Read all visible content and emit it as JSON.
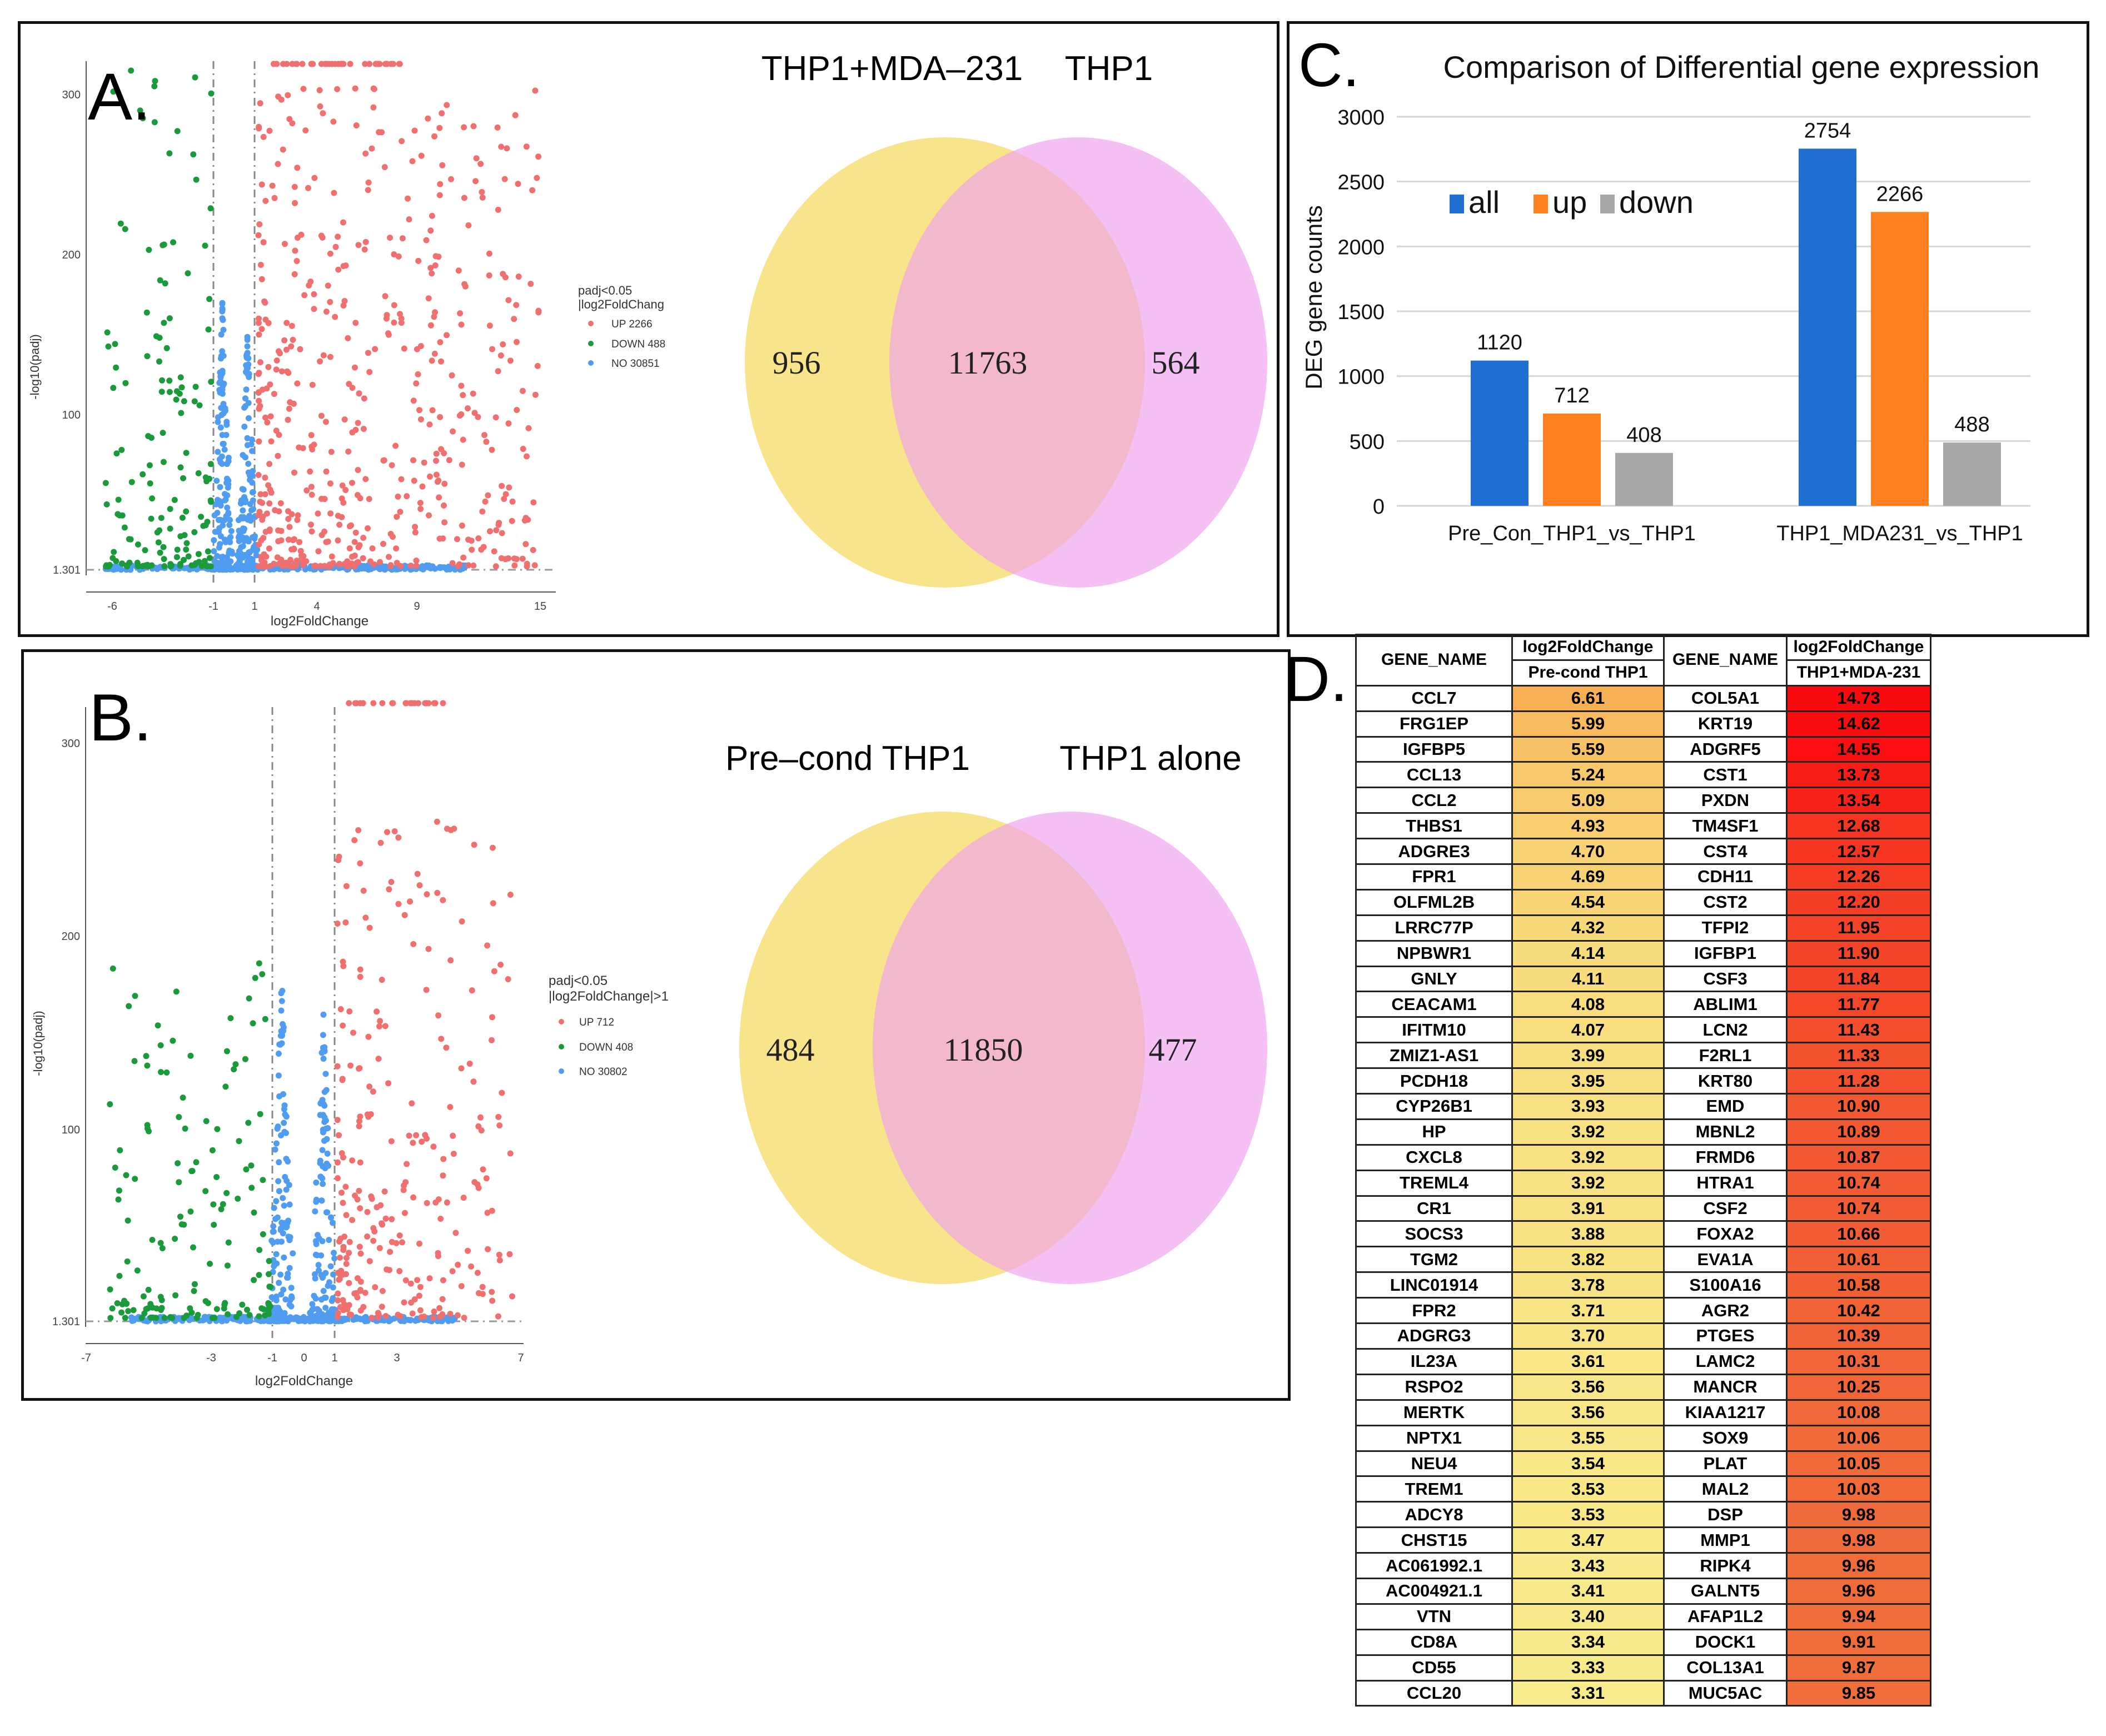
{
  "panels": {
    "a_label": "A.",
    "b_label": "B.",
    "c_label": "C.",
    "d_label": "D."
  },
  "volcano_a": {
    "xlabel": "log2FoldChange",
    "ylabel": "-log10(padj)",
    "xticks": [
      "-6",
      "-1",
      "1",
      "4",
      "9",
      "15"
    ],
    "yticks": [
      "1.301",
      "100",
      "200",
      "300"
    ],
    "legend_title1": "padj<0.05",
    "legend_title2": "|log2FoldChang",
    "legend_up": "UP 2266",
    "legend_down": "DOWN 488",
    "legend_no": "NO 30851",
    "colors": {
      "up": "#f07070",
      "down": "#1a9a3a",
      "no": "#4f9cf0"
    }
  },
  "volcano_b": {
    "xlabel": "log2FoldChange",
    "ylabel": "-log10(padj)",
    "xticks": [
      "-7",
      "-3",
      "-1",
      "0",
      "1",
      "3",
      "7"
    ],
    "yticks": [
      "1.301",
      "100",
      "200",
      "300"
    ],
    "legend_title1": "padj<0.05",
    "legend_title2": "|log2FoldChange|>1",
    "legend_up": "UP 712",
    "legend_down": "DOWN 408",
    "legend_no": "NO 30802"
  },
  "venn_a": {
    "left_title": "THP1+MDA–231",
    "right_title": "THP1",
    "left_only": "956",
    "overlap": "11763",
    "right_only": "564",
    "colors": {
      "left": "#f8e48a",
      "right": "#f0a0f0",
      "overlap": "#f4a8b8"
    }
  },
  "venn_b": {
    "left_title": "Pre–cond THP1",
    "right_title": "THP1 alone",
    "left_only": "484",
    "overlap": "11850",
    "right_only": "477"
  },
  "chart_data": {
    "type": "bar",
    "title": "Comparison of Differential gene expression",
    "ylabel": "DEG gene counts",
    "xlabel": "",
    "ylim": [
      0,
      3000
    ],
    "yticks": [
      "0",
      "500",
      "1000",
      "1500",
      "2000",
      "2500",
      "3000"
    ],
    "grid": true,
    "legend": "top-left",
    "categories": [
      "Pre_Con_THP1_vs_THP1",
      "THP1_MDA231_vs_THP1"
    ],
    "series": [
      {
        "name": "all",
        "values": [
          1120,
          2754
        ],
        "color": "#1f6fd0"
      },
      {
        "name": "up",
        "values": [
          712,
          2266
        ],
        "color": "#ff8020"
      },
      {
        "name": "down",
        "values": [
          408,
          488
        ],
        "color": "#a8a8a8"
      }
    ]
  },
  "table": {
    "header_gene": "GENE_NAME",
    "header_lfc": "log2FoldChange",
    "header_sub1": "Pre-cond THP1",
    "header_gene2": "GENE_NAME",
    "header_sub2": "THP1+MDA-231",
    "rows": [
      [
        "CCL7",
        "6.61",
        "COL5A1",
        "14.73"
      ],
      [
        "FRG1EP",
        "5.99",
        "KRT19",
        "14.62"
      ],
      [
        "IGFBP5",
        "5.59",
        "ADGRF5",
        "14.55"
      ],
      [
        "CCL13",
        "5.24",
        "CST1",
        "13.73"
      ],
      [
        "CCL2",
        "5.09",
        "PXDN",
        "13.54"
      ],
      [
        "THBS1",
        "4.93",
        "TM4SF1",
        "12.68"
      ],
      [
        "ADGRE3",
        "4.70",
        "CST4",
        "12.57"
      ],
      [
        "FPR1",
        "4.69",
        "CDH11",
        "12.26"
      ],
      [
        "OLFML2B",
        "4.54",
        "CST2",
        "12.20"
      ],
      [
        "LRRC77P",
        "4.32",
        "TFPI2",
        "11.95"
      ],
      [
        "NPBWR1",
        "4.14",
        "IGFBP1",
        "11.90"
      ],
      [
        "GNLY",
        "4.11",
        "CSF3",
        "11.84"
      ],
      [
        "CEACAM1",
        "4.08",
        "ABLIM1",
        "11.77"
      ],
      [
        "IFITM10",
        "4.07",
        "LCN2",
        "11.43"
      ],
      [
        "ZMIZ1-AS1",
        "3.99",
        "F2RL1",
        "11.33"
      ],
      [
        "PCDH18",
        "3.95",
        "KRT80",
        "11.28"
      ],
      [
        "CYP26B1",
        "3.93",
        "EMD",
        "10.90"
      ],
      [
        "HP",
        "3.92",
        "MBNL2",
        "10.89"
      ],
      [
        "CXCL8",
        "3.92",
        "FRMD6",
        "10.87"
      ],
      [
        "TREML4",
        "3.92",
        "HTRA1",
        "10.74"
      ],
      [
        "CR1",
        "3.91",
        "CSF2",
        "10.74"
      ],
      [
        "SOCS3",
        "3.88",
        "FOXA2",
        "10.66"
      ],
      [
        "TGM2",
        "3.82",
        "EVA1A",
        "10.61"
      ],
      [
        "LINC01914",
        "3.78",
        "S100A16",
        "10.58"
      ],
      [
        "FPR2",
        "3.71",
        "AGR2",
        "10.42"
      ],
      [
        "ADGRG3",
        "3.70",
        "PTGES",
        "10.39"
      ],
      [
        "IL23A",
        "3.61",
        "LAMC2",
        "10.31"
      ],
      [
        "RSPO2",
        "3.56",
        "MANCR",
        "10.25"
      ],
      [
        "MERTK",
        "3.56",
        "KIAA1217",
        "10.08"
      ],
      [
        "NPTX1",
        "3.55",
        "SOX9",
        "10.06"
      ],
      [
        "NEU4",
        "3.54",
        "PLAT",
        "10.05"
      ],
      [
        "TREM1",
        "3.53",
        "MAL2",
        "10.03"
      ],
      [
        "ADCY8",
        "3.53",
        "DSP",
        "9.98"
      ],
      [
        "CHST15",
        "3.47",
        "MMP1",
        "9.98"
      ],
      [
        "AC061992.1",
        "3.43",
        "RIPK4",
        "9.96"
      ],
      [
        "AC004921.1",
        "3.41",
        "GALNT5",
        "9.96"
      ],
      [
        "VTN",
        "3.40",
        "AFAP1L2",
        "9.94"
      ],
      [
        "CD8A",
        "3.34",
        "DOCK1",
        "9.91"
      ],
      [
        "CD55",
        "3.33",
        "COL13A1",
        "9.87"
      ],
      [
        "CCL20",
        "3.31",
        "MUC5AC",
        "9.85"
      ]
    ]
  }
}
